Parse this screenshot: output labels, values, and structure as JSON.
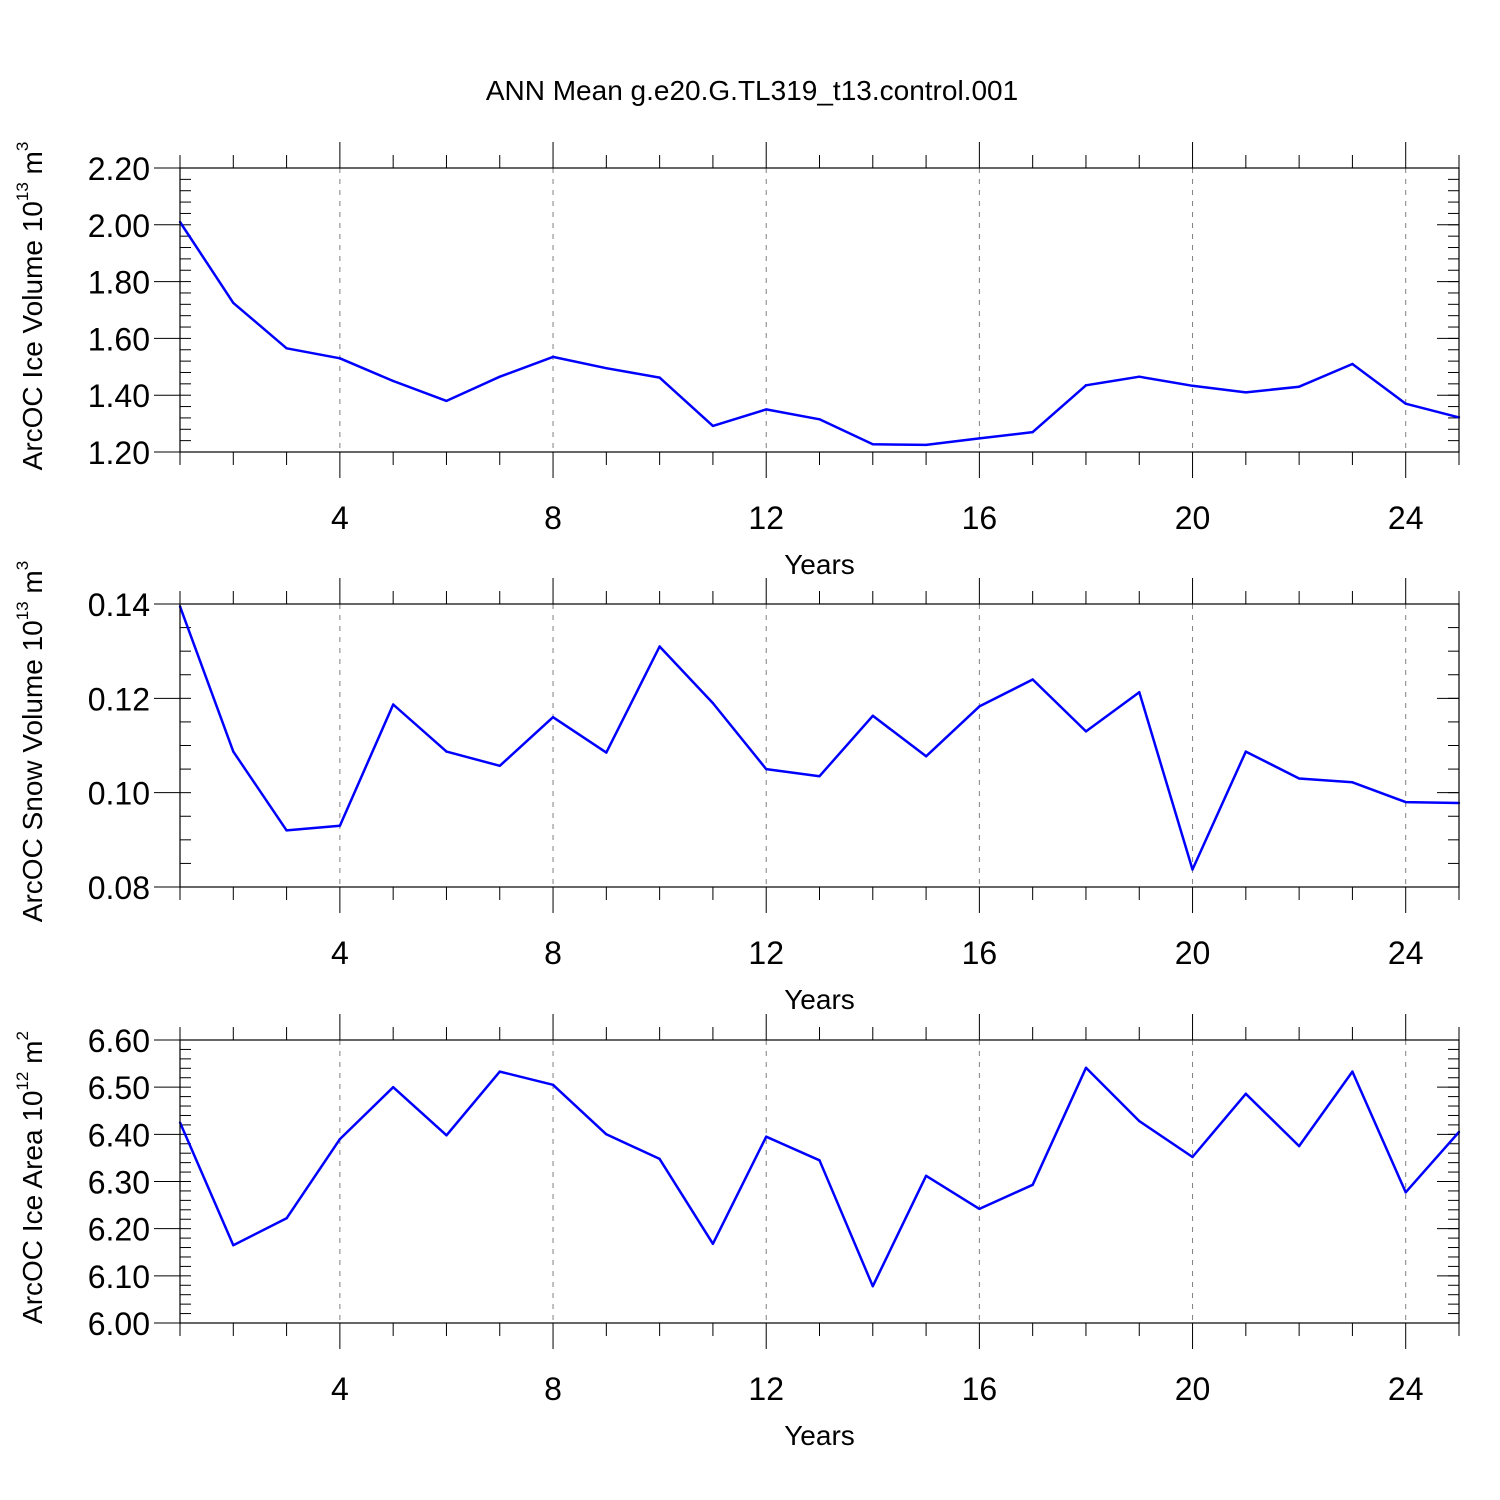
{
  "figure_title": "ANN Mean g.e20.G.TL319_t13.control.001",
  "colors": {
    "line": "#0000ff",
    "axis": "#000000",
    "grid": "#808080"
  },
  "chart_data": [
    {
      "type": "line",
      "title": "ANN Mean g.e20.G.TL319_t13.control.001",
      "xlabel": "Years",
      "ylabel": {
        "text": "ArcOC Ice Volume 10",
        "exp": "13",
        "unit": " m",
        "unit_exp": "3"
      },
      "xlim": [
        1,
        25
      ],
      "ylim": [
        1.2,
        2.2
      ],
      "xticks": [
        4,
        8,
        12,
        16,
        20,
        24
      ],
      "xtick_labels": [
        "4",
        "8",
        "12",
        "16",
        "20",
        "24"
      ],
      "yticks": [
        1.2,
        1.4,
        1.6,
        1.8,
        2.0,
        2.2
      ],
      "ytick_labels": [
        "1.20",
        "1.40",
        "1.60",
        "1.80",
        "2.00",
        "2.20"
      ],
      "y_minor_step": 0.04,
      "grid": "vertical dashed",
      "series": [
        {
          "name": "ArcOC Ice Volume",
          "x": [
            1,
            2,
            3,
            4,
            5,
            6,
            7,
            8,
            9,
            10,
            11,
            12,
            13,
            14,
            15,
            16,
            17,
            18,
            19,
            20,
            21,
            22,
            23,
            24,
            25
          ],
          "values": [
            2.01,
            1.725,
            1.565,
            1.53,
            1.45,
            1.38,
            1.465,
            1.535,
            1.495,
            1.462,
            1.292,
            1.35,
            1.315,
            1.227,
            1.225,
            1.248,
            1.27,
            1.435,
            1.465,
            1.433,
            1.41,
            1.43,
            1.51,
            1.37,
            1.322
          ]
        }
      ]
    },
    {
      "type": "line",
      "xlabel": "Years",
      "ylabel": {
        "text": "ArcOC Snow Volume 10",
        "exp": "13",
        "unit": " m",
        "unit_exp": "3"
      },
      "xlim": [
        1,
        25
      ],
      "ylim": [
        0.08,
        0.14
      ],
      "xticks": [
        4,
        8,
        12,
        16,
        20,
        24
      ],
      "xtick_labels": [
        "4",
        "8",
        "12",
        "16",
        "20",
        "24"
      ],
      "yticks": [
        0.08,
        0.1,
        0.12,
        0.14
      ],
      "ytick_labels": [
        "0.08",
        "0.10",
        "0.12",
        "0.14"
      ],
      "y_minor_step": 0.005,
      "grid": "vertical dashed",
      "series": [
        {
          "name": "ArcOC Snow Volume",
          "x": [
            1,
            2,
            3,
            4,
            5,
            6,
            7,
            8,
            9,
            10,
            11,
            12,
            13,
            14,
            15,
            16,
            17,
            18,
            19,
            20,
            21,
            22,
            23,
            24,
            25
          ],
          "values": [
            0.1395,
            0.1087,
            0.092,
            0.093,
            0.1187,
            0.1087,
            0.1057,
            0.116,
            0.1085,
            0.131,
            0.119,
            0.105,
            0.1035,
            0.1163,
            0.1077,
            0.1183,
            0.124,
            0.113,
            0.1213,
            0.0837,
            0.1087,
            0.103,
            0.1022,
            0.098,
            0.0978
          ]
        }
      ]
    },
    {
      "type": "line",
      "xlabel": "Years",
      "ylabel": {
        "text": "ArcOC Ice Area 10",
        "exp": "12",
        "unit": " m",
        "unit_exp": "2"
      },
      "xlim": [
        1,
        25
      ],
      "ylim": [
        6.0,
        6.6
      ],
      "xticks": [
        4,
        8,
        12,
        16,
        20,
        24
      ],
      "xtick_labels": [
        "4",
        "8",
        "12",
        "16",
        "20",
        "24"
      ],
      "yticks": [
        6.0,
        6.1,
        6.2,
        6.3,
        6.4,
        6.5,
        6.6
      ],
      "ytick_labels": [
        "6.00",
        "6.10",
        "6.20",
        "6.30",
        "6.40",
        "6.50",
        "6.60"
      ],
      "y_minor_step": 0.02,
      "grid": "vertical dashed",
      "series": [
        {
          "name": "ArcOC Ice Area",
          "x": [
            1,
            2,
            3,
            4,
            5,
            6,
            7,
            8,
            9,
            10,
            11,
            12,
            13,
            14,
            15,
            16,
            17,
            18,
            19,
            20,
            21,
            22,
            23,
            24,
            25
          ],
          "values": [
            6.425,
            6.165,
            6.222,
            6.39,
            6.5,
            6.398,
            6.533,
            6.505,
            6.4,
            6.348,
            6.168,
            6.395,
            6.345,
            6.078,
            6.312,
            6.242,
            6.293,
            6.541,
            6.428,
            6.352,
            6.486,
            6.375,
            6.533,
            6.277,
            6.405
          ]
        }
      ]
    }
  ]
}
